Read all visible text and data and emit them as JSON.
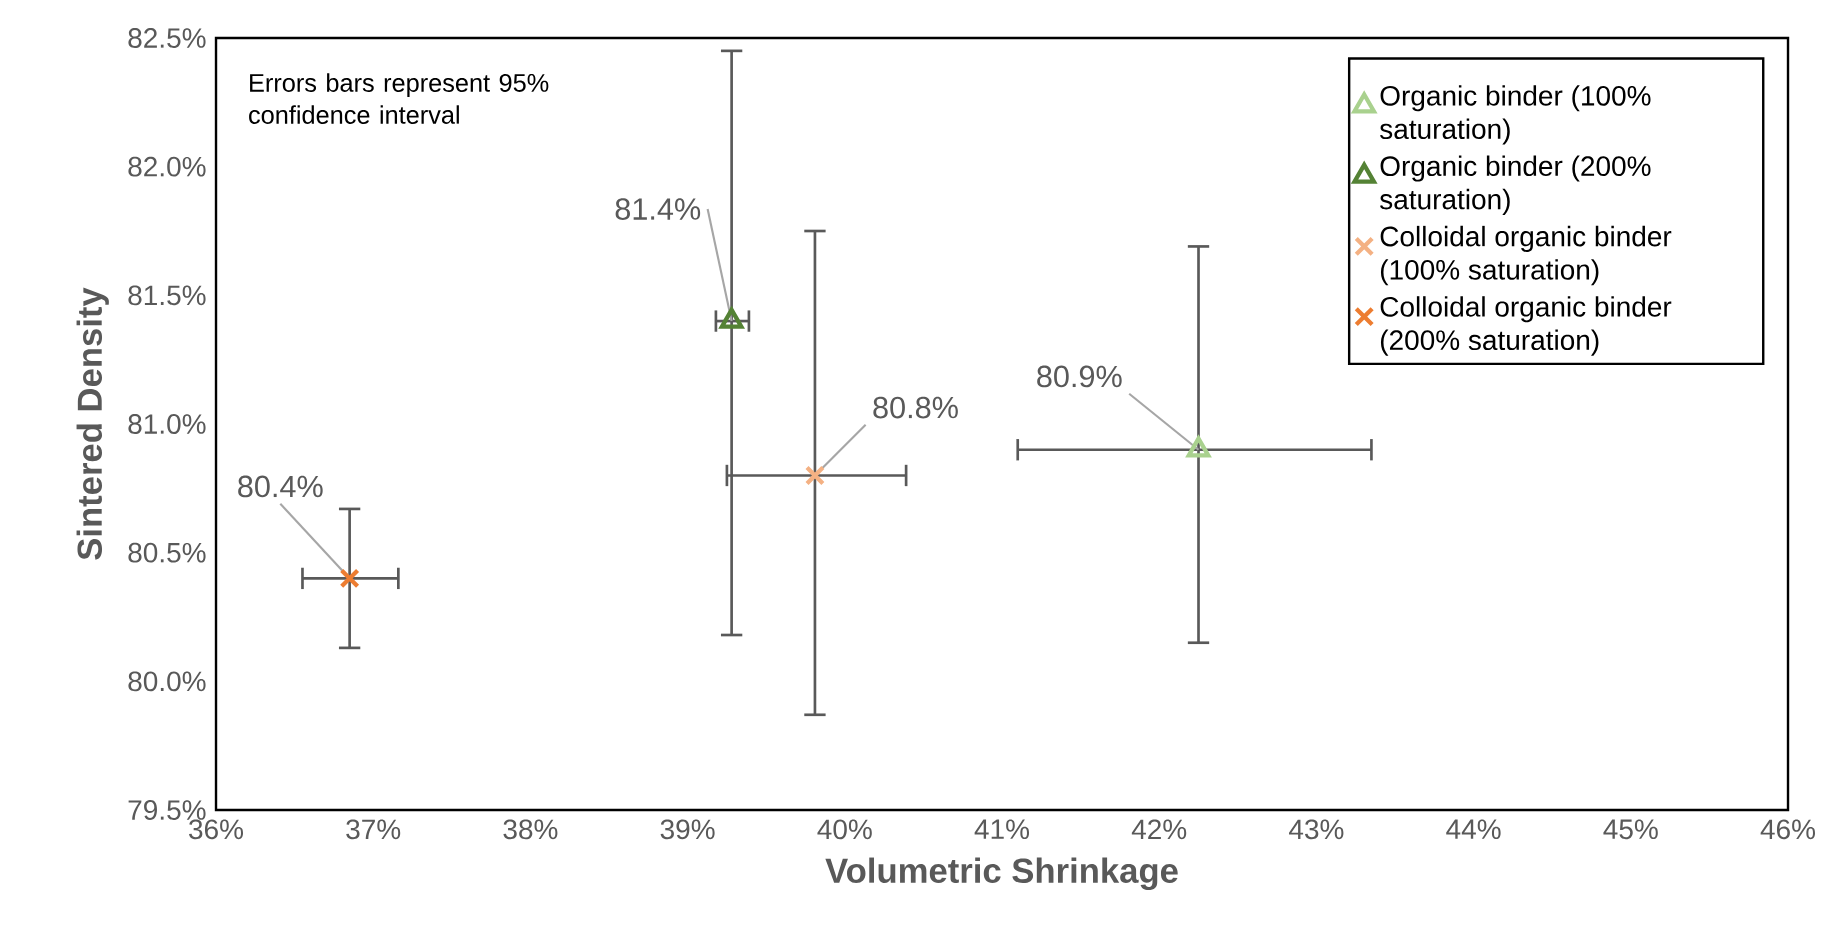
{
  "chart_data": {
    "type": "scatter",
    "xlabel": "Volumetric Shrinkage",
    "ylabel": "Sintered Density",
    "xlim": [
      36,
      46
    ],
    "xticks": [
      {
        "value": 36,
        "label": "36%"
      },
      {
        "value": 37,
        "label": "37%"
      },
      {
        "value": 38,
        "label": "38%"
      },
      {
        "value": 39,
        "label": "39%"
      },
      {
        "value": 40,
        "label": "40%"
      },
      {
        "value": 41,
        "label": "41%"
      },
      {
        "value": 42,
        "label": "42%"
      },
      {
        "value": 43,
        "label": "43%"
      },
      {
        "value": 44,
        "label": "44%"
      },
      {
        "value": 45,
        "label": "45%"
      },
      {
        "value": 46,
        "label": "46%"
      }
    ],
    "ylim": [
      79.5,
      82.5
    ],
    "yticks": [
      {
        "value": 79.5,
        "label": "79.5%"
      },
      {
        "value": 80,
        "label": "80.0%"
      },
      {
        "value": 80.5,
        "label": "80.5%"
      },
      {
        "value": 81,
        "label": "81.0%"
      },
      {
        "value": 81.5,
        "label": "81.5%"
      },
      {
        "value": 82,
        "label": "82.0%"
      },
      {
        "value": 82.5,
        "label": "82.5%"
      }
    ],
    "grid": false,
    "legend": "top right",
    "annotations": [
      "Errors bars represent 95% confidence interval"
    ],
    "series": [
      {
        "name": "Organic binder (100% saturation)",
        "color": "#a9d18e",
        "marker": "triangle",
        "x": [
          42.25
        ],
        "values": [
          80.9
        ],
        "xerrors": [
          [
            41.1,
            43.35
          ]
        ],
        "errors": [
          [
            80.15,
            81.69
          ]
        ],
        "value_labels": [
          "80.9%"
        ]
      },
      {
        "name": "Organic binder (200% saturation)",
        "color": "#548235",
        "marker": "triangle",
        "x": [
          39.28
        ],
        "values": [
          81.4
        ],
        "xerrors": [
          [
            39.18,
            39.39
          ]
        ],
        "errors": [
          [
            80.18,
            82.45
          ]
        ],
        "value_labels": [
          "81.4%"
        ]
      },
      {
        "name": "Colloidal organic binder (100% saturation)",
        "color": "#f4b183",
        "marker": "cross",
        "x": [
          39.81
        ],
        "values": [
          80.8
        ],
        "xerrors": [
          [
            39.25,
            40.39
          ]
        ],
        "errors": [
          [
            79.87,
            81.75
          ]
        ],
        "value_labels": [
          "80.8%"
        ]
      },
      {
        "name": "Colloidal organic binder (200% saturation)",
        "color": "#ed7d31",
        "marker": "cross",
        "x": [
          36.85
        ],
        "values": [
          80.4
        ],
        "xerrors": [
          [
            36.55,
            37.16
          ]
        ],
        "errors": [
          [
            80.13,
            80.67
          ]
        ],
        "value_labels": [
          "80.4%"
        ]
      }
    ]
  }
}
